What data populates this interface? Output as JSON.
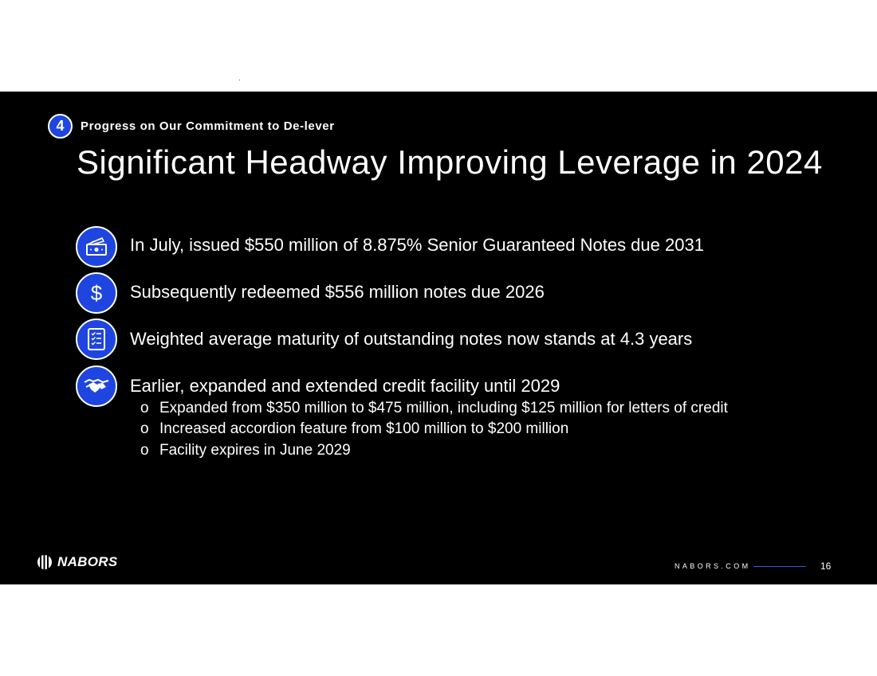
{
  "section": {
    "number": "4",
    "label": "Progress on Our Commitment to De-lever"
  },
  "title": "Significant Headway Improving Leverage in 2024",
  "bullets": [
    {
      "icon": "money-icon",
      "text": "In July, issued $550 million of 8.875% Senior Guaranteed Notes due 2031"
    },
    {
      "icon": "dollar-icon",
      "text": "Subsequently redeemed $556 million notes due 2026"
    },
    {
      "icon": "checklist-icon",
      "text": "Weighted average maturity of outstanding notes now stands at 4.3 years"
    },
    {
      "icon": "handshake-icon",
      "text": "Earlier, expanded and extended credit facility until 2029"
    }
  ],
  "sub_bullets": [
    {
      "marker": "o",
      "text": "Expanded from $350 million to $475 million, including $125 million for letters of credit"
    },
    {
      "marker": "o",
      "text": "Increased accordion feature from $100 million to $200 million"
    },
    {
      "marker": "o",
      "text": "Facility expires in June 2029"
    }
  ],
  "footer": {
    "logo": "NABORS",
    "site": "NABORS.COM",
    "page": "16"
  },
  "colors": {
    "background": "#000000",
    "accent": "#1f45e0",
    "text": "#ffffff"
  },
  "dollar_symbol": "$"
}
